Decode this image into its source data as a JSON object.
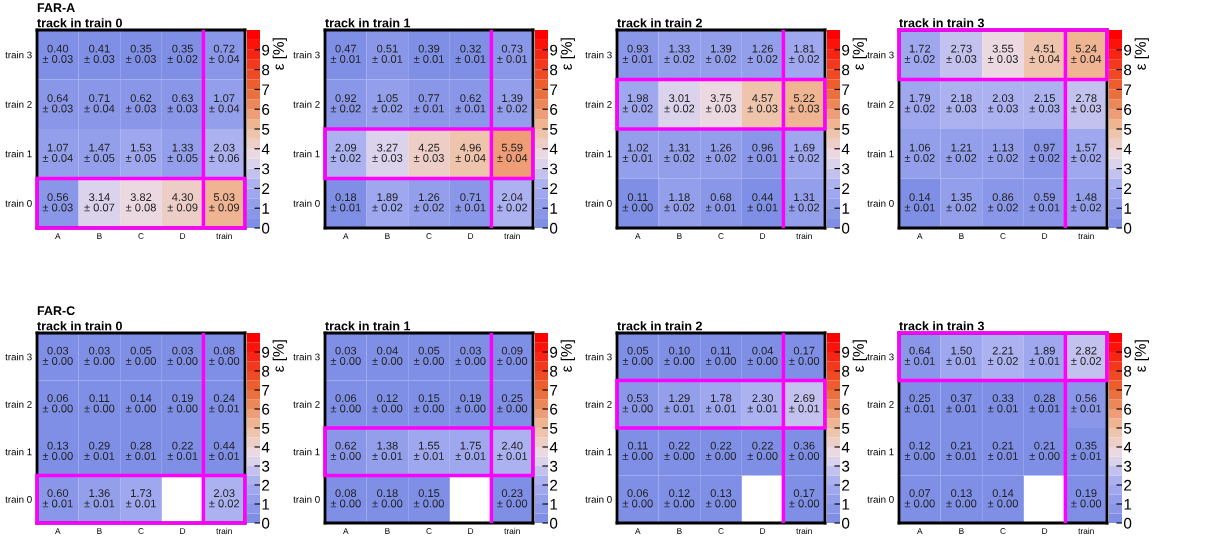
{
  "chart_data": [
    {
      "type": "heatmap",
      "title": "FAR-A",
      "subtitle": "track in train 0",
      "clabel": "ε [%]",
      "categories": [
        "A",
        "B",
        "C",
        "D",
        "train"
      ],
      "y_categories": [
        "train 3",
        "train 2",
        "train 1",
        "train 0"
      ],
      "cells": [
        [
          0.4,
          0.41,
          0.35,
          0.35,
          0.72
        ],
        [
          0.64,
          0.71,
          0.62,
          0.63,
          1.07
        ],
        [
          1.07,
          1.47,
          1.53,
          1.33,
          2.03
        ],
        [
          0.56,
          3.14,
          3.82,
          4.3,
          5.03
        ]
      ],
      "cell_labels": [
        [
          "0.40\n± 0.03",
          "0.41\n± 0.03",
          "0.35\n± 0.03",
          "0.35\n± 0.02",
          "0.72\n± 0.04"
        ],
        [
          "0.64\n± 0.03",
          "0.71\n± 0.04",
          "0.62\n± 0.03",
          "0.63\n± 0.03",
          "1.07\n± 0.04"
        ],
        [
          "1.07\n± 0.04",
          "1.47\n± 0.05",
          "1.53\n± 0.05",
          "1.33\n± 0.05",
          "2.03\n± 0.06"
        ],
        [
          "0.56\n± 0.03",
          "3.14\n± 0.07",
          "3.82\n± 0.08",
          "4.30\n± 0.09",
          "5.03\n± 0.09"
        ]
      ],
      "clim": [
        0,
        10
      ],
      "cticks": [
        0,
        1,
        2,
        3,
        4,
        5,
        6,
        7,
        8,
        9
      ]
    },
    {
      "type": "heatmap",
      "title": "track in train 1",
      "clabel": "ε [%]",
      "categories": [
        "A",
        "B",
        "C",
        "D",
        "train"
      ],
      "y_categories": [
        "train 3",
        "train 2",
        "train 1",
        "train 0"
      ],
      "cells": [
        [
          0.47,
          0.51,
          0.39,
          0.32,
          0.73
        ],
        [
          0.92,
          1.05,
          0.77,
          0.62,
          1.39
        ],
        [
          2.09,
          3.27,
          4.25,
          4.96,
          5.59
        ],
        [
          0.18,
          1.89,
          1.26,
          0.71,
          2.04
        ]
      ],
      "cell_labels": [
        [
          "0.47\n± 0.01",
          "0.51\n± 0.01",
          "0.39\n± 0.01",
          "0.32\n± 0.01",
          "0.73\n± 0.01"
        ],
        [
          "0.92\n± 0.02",
          "1.05\n± 0.02",
          "0.77\n± 0.01",
          "0.62\n± 0.01",
          "1.39\n± 0.02"
        ],
        [
          "2.09\n± 0.02",
          "3.27\n± 0.03",
          "4.25\n± 0.03",
          "4.96\n± 0.04",
          "5.59\n± 0.04"
        ],
        [
          "0.18\n± 0.01",
          "1.89\n± 0.02",
          "1.26\n± 0.02",
          "0.71\n± 0.01",
          "2.04\n± 0.02"
        ]
      ],
      "clim": [
        0,
        10
      ],
      "cticks": [
        0,
        1,
        2,
        3,
        4,
        5,
        6,
        7,
        8,
        9
      ]
    },
    {
      "type": "heatmap",
      "title": "track in train 2",
      "clabel": "ε [%]",
      "categories": [
        "A",
        "B",
        "C",
        "D",
        "train"
      ],
      "y_categories": [
        "train 3",
        "train 2",
        "train 1",
        "train 0"
      ],
      "cells": [
        [
          0.93,
          1.33,
          1.39,
          1.26,
          1.81
        ],
        [
          1.98,
          3.01,
          3.75,
          4.57,
          5.22
        ],
        [
          1.02,
          1.31,
          1.26,
          0.96,
          1.69
        ],
        [
          0.11,
          1.18,
          0.68,
          0.44,
          1.31
        ]
      ],
      "cell_labels": [
        [
          "0.93\n± 0.01",
          "1.33\n± 0.02",
          "1.39\n± 0.02",
          "1.26\n± 0.02",
          "1.81\n± 0.02"
        ],
        [
          "1.98\n± 0.02",
          "3.01\n± 0.02",
          "3.75\n± 0.03",
          "4.57\n± 0.03",
          "5.22\n± 0.03"
        ],
        [
          "1.02\n± 0.01",
          "1.31\n± 0.02",
          "1.26\n± 0.02",
          "0.96\n± 0.01",
          "1.69\n± 0.02"
        ],
        [
          "0.11\n± 0.00",
          "1.18\n± 0.02",
          "0.68\n± 0.01",
          "0.44\n± 0.01",
          "1.31\n± 0.02"
        ]
      ],
      "clim": [
        0,
        10
      ],
      "cticks": [
        0,
        1,
        2,
        3,
        4,
        5,
        6,
        7,
        8,
        9
      ]
    },
    {
      "type": "heatmap",
      "title": "track in train 3",
      "clabel": "ε [%]",
      "categories": [
        "A",
        "B",
        "C",
        "D",
        "train"
      ],
      "y_categories": [
        "train 3",
        "train 2",
        "train 1",
        "train 0"
      ],
      "cells": [
        [
          1.72,
          2.73,
          3.55,
          4.51,
          5.24
        ],
        [
          1.79,
          2.18,
          2.03,
          2.15,
          2.78
        ],
        [
          1.06,
          1.21,
          1.13,
          0.97,
          1.57
        ],
        [
          0.14,
          1.35,
          0.86,
          0.59,
          1.48
        ]
      ],
      "cell_labels": [
        [
          "1.72\n± 0.02",
          "2.73\n± 0.03",
          "3.55\n± 0.03",
          "4.51\n± 0.04",
          "5.24\n± 0.04"
        ],
        [
          "1.79\n± 0.02",
          "2.18\n± 0.03",
          "2.03\n± 0.03",
          "2.15\n± 0.03",
          "2.78\n± 0.03"
        ],
        [
          "1.06\n± 0.02",
          "1.21\n± 0.02",
          "1.13\n± 0.02",
          "0.97\n± 0.02",
          "1.57\n± 0.02"
        ],
        [
          "0.14\n± 0.01",
          "1.35\n± 0.02",
          "0.86\n± 0.02",
          "0.59\n± 0.01",
          "1.48\n± 0.02"
        ]
      ],
      "clim": [
        0,
        10
      ],
      "cticks": [
        0,
        1,
        2,
        3,
        4,
        5,
        6,
        7,
        8,
        9
      ]
    },
    {
      "type": "heatmap",
      "title": "FAR-C",
      "subtitle": "track in train 0",
      "clabel": "ε [%]",
      "categories": [
        "A",
        "B",
        "C",
        "D",
        "train"
      ],
      "y_categories": [
        "train 3",
        "train 2",
        "train 1",
        "train 0"
      ],
      "cells": [
        [
          0.03,
          0.03,
          0.05,
          0.03,
          0.08
        ],
        [
          0.06,
          0.11,
          0.14,
          0.19,
          0.24
        ],
        [
          0.13,
          0.29,
          0.28,
          0.22,
          0.44
        ],
        [
          0.6,
          1.36,
          1.73,
          null,
          2.03
        ]
      ],
      "cell_labels": [
        [
          "0.03\n± 0.00",
          "0.03\n± 0.00",
          "0.05\n± 0.00",
          "0.03\n± 0.00",
          "0.08\n± 0.00"
        ],
        [
          "0.06\n± 0.00",
          "0.11\n± 0.00",
          "0.14\n± 0.00",
          "0.19\n± 0.00",
          "0.24\n± 0.01"
        ],
        [
          "0.13\n± 0.00",
          "0.29\n± 0.01",
          "0.28\n± 0.01",
          "0.22\n± 0.01",
          "0.44\n± 0.01"
        ],
        [
          "0.60\n± 0.01",
          "1.36\n± 0.01",
          "1.73\n± 0.01",
          null,
          "2.03\n± 0.02"
        ]
      ],
      "clim": [
        0,
        10
      ],
      "cticks": [
        0,
        1,
        2,
        3,
        4,
        5,
        6,
        7,
        8,
        9
      ]
    },
    {
      "type": "heatmap",
      "title": "track in train 1",
      "clabel": "ε [%]",
      "categories": [
        "A",
        "B",
        "C",
        "D",
        "train"
      ],
      "y_categories": [
        "train 3",
        "train 2",
        "train 1",
        "train 0"
      ],
      "cells": [
        [
          0.03,
          0.04,
          0.05,
          0.03,
          0.09
        ],
        [
          0.06,
          0.12,
          0.15,
          0.19,
          0.25
        ],
        [
          0.62,
          1.38,
          1.55,
          1.75,
          2.4
        ],
        [
          0.08,
          0.18,
          0.15,
          null,
          0.23
        ]
      ],
      "cell_labels": [
        [
          "0.03\n± 0.00",
          "0.04\n± 0.00",
          "0.05\n± 0.00",
          "0.03\n± 0.00",
          "0.09\n± 0.00"
        ],
        [
          "0.06\n± 0.00",
          "0.12\n± 0.00",
          "0.15\n± 0.00",
          "0.19\n± 0.00",
          "0.25\n± 0.00"
        ],
        [
          "0.62\n± 0.00",
          "1.38\n± 0.01",
          "1.55\n± 0.01",
          "1.75\n± 0.01",
          "2.40\n± 0.01"
        ],
        [
          "0.08\n± 0.00",
          "0.18\n± 0.00",
          "0.15\n± 0.00",
          null,
          "0.23\n± 0.00"
        ]
      ],
      "clim": [
        0,
        10
      ],
      "cticks": [
        0,
        1,
        2,
        3,
        4,
        5,
        6,
        7,
        8,
        9
      ]
    },
    {
      "type": "heatmap",
      "title": "track in train 2",
      "clabel": "ε [%]",
      "categories": [
        "A",
        "B",
        "C",
        "D",
        "train"
      ],
      "y_categories": [
        "train 3",
        "train 2",
        "train 1",
        "train 0"
      ],
      "cells": [
        [
          0.05,
          0.1,
          0.11,
          0.04,
          0.17
        ],
        [
          0.53,
          1.29,
          1.78,
          2.3,
          2.69
        ],
        [
          0.11,
          0.22,
          0.22,
          0.22,
          0.36
        ],
        [
          0.06,
          0.12,
          0.13,
          null,
          0.17
        ]
      ],
      "cell_labels": [
        [
          "0.05\n± 0.00",
          "0.10\n± 0.00",
          "0.11\n± 0.00",
          "0.04\n± 0.00",
          "0.17\n± 0.00"
        ],
        [
          "0.53\n± 0.00",
          "1.29\n± 0.01",
          "1.78\n± 0.01",
          "2.30\n± 0.01",
          "2.69\n± 0.01"
        ],
        [
          "0.11\n± 0.00",
          "0.22\n± 0.00",
          "0.22\n± 0.00",
          "0.22\n± 0.00",
          "0.36\n± 0.00"
        ],
        [
          "0.06\n± 0.00",
          "0.12\n± 0.00",
          "0.13\n± 0.00",
          null,
          "0.17\n± 0.00"
        ]
      ],
      "clim": [
        0,
        10
      ],
      "cticks": [
        0,
        1,
        2,
        3,
        4,
        5,
        6,
        7,
        8,
        9
      ]
    },
    {
      "type": "heatmap",
      "title": "track in train 3",
      "clabel": "ε [%]",
      "categories": [
        "A",
        "B",
        "C",
        "D",
        "train"
      ],
      "y_categories": [
        "train 3",
        "train 2",
        "train 1",
        "train 0"
      ],
      "cells": [
        [
          0.64,
          1.5,
          2.21,
          1.89,
          2.82
        ],
        [
          0.25,
          0.37,
          0.33,
          0.28,
          0.56
        ],
        [
          0.12,
          0.21,
          0.21,
          0.21,
          0.35
        ],
        [
          0.07,
          0.13,
          0.14,
          null,
          0.19
        ]
      ],
      "cell_labels": [
        [
          "0.64\n± 0.01",
          "1.50\n± 0.01",
          "2.21\n± 0.02",
          "1.89\n± 0.01",
          "2.82\n± 0.02"
        ],
        [
          "0.25\n± 0.01",
          "0.37\n± 0.01",
          "0.33\n± 0.01",
          "0.28\n± 0.01",
          "0.56\n± 0.01"
        ],
        [
          "0.12\n± 0.00",
          "0.21\n± 0.01",
          "0.21\n± 0.01",
          "0.21\n± 0.00",
          "0.35\n± 0.01"
        ],
        [
          "0.07\n± 0.00",
          "0.13\n± 0.00",
          "0.14\n± 0.00",
          null,
          "0.19\n± 0.00"
        ]
      ],
      "clim": [
        0,
        10
      ],
      "cticks": [
        0,
        1,
        2,
        3,
        4,
        5,
        6,
        7,
        8,
        9
      ]
    }
  ]
}
